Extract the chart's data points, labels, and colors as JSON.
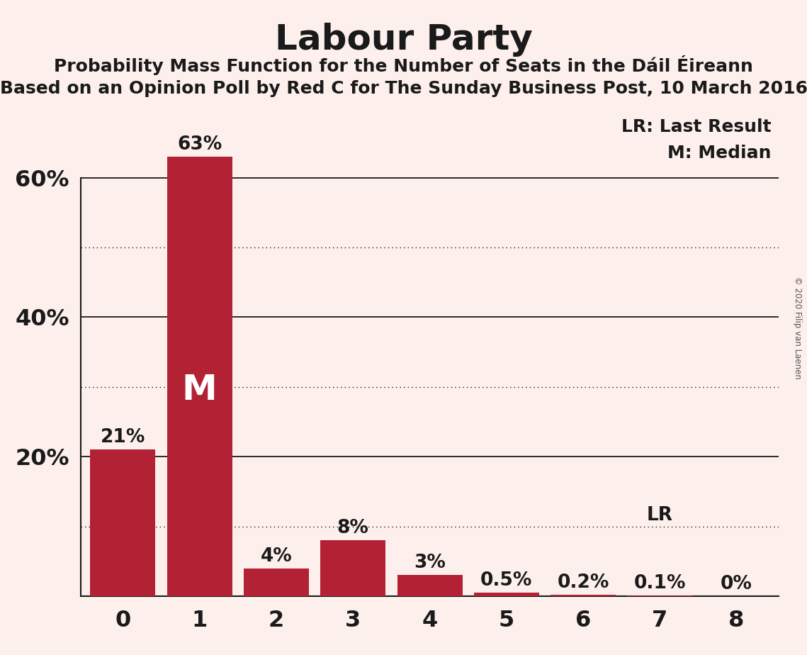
{
  "title": "Labour Party",
  "subtitle1": "Probability Mass Function for the Number of Seats in the Dáil Éireann",
  "subtitle2": "Based on an Opinion Poll by Red C for The Sunday Business Post, 10 March 2016",
  "copyright": "© 2020 Filip van Laenen",
  "categories": [
    0,
    1,
    2,
    3,
    4,
    5,
    6,
    7,
    8
  ],
  "values": [
    0.21,
    0.63,
    0.04,
    0.08,
    0.03,
    0.005,
    0.002,
    0.001,
    0.0
  ],
  "bar_labels": [
    "21%",
    "63%",
    "4%",
    "8%",
    "3%",
    "0.5%",
    "0.2%",
    "0.1%",
    "0%"
  ],
  "bar_color": "#b22234",
  "median_bar": 1,
  "median_label": "M",
  "lr_bar": 7,
  "lr_label": "LR",
  "legend_lr": "LR: Last Result",
  "legend_m": "M: Median",
  "background_color": "#fdf0ec",
  "text_color": "#1a1a1a",
  "ylim": [
    0,
    0.7
  ],
  "solid_yticks": [
    0.2,
    0.4,
    0.6
  ],
  "dotted_lines": [
    0.1,
    0.3,
    0.5
  ]
}
